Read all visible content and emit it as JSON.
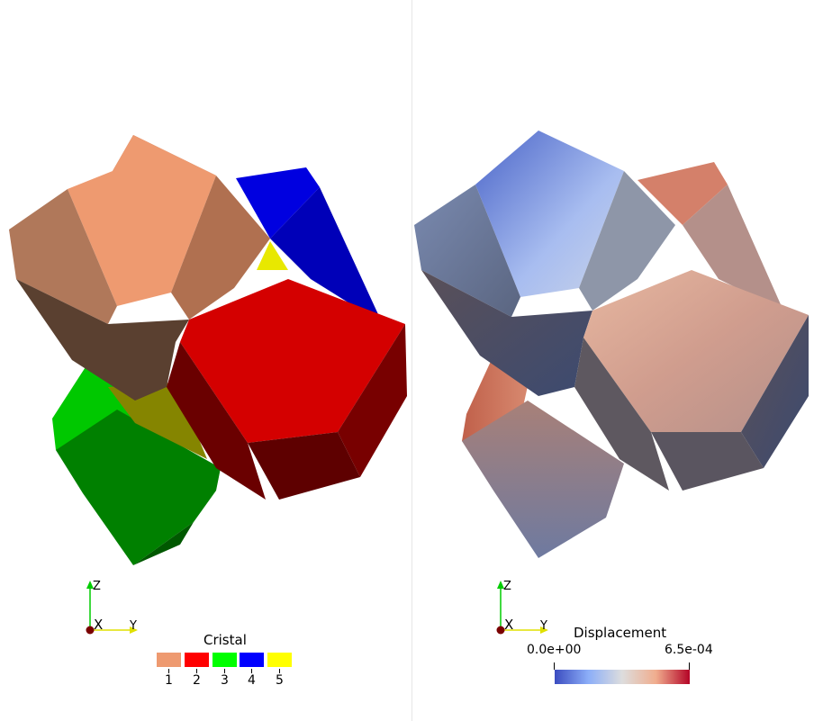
{
  "left_view": {
    "legend": {
      "title": "Cristal",
      "entries": [
        {
          "label": "1",
          "color": "#ee9a70"
        },
        {
          "label": "2",
          "color": "#ff0000"
        },
        {
          "label": "3",
          "color": "#00ff00"
        },
        {
          "label": "4",
          "color": "#0000ff"
        },
        {
          "label": "5",
          "color": "#ffff00"
        }
      ]
    },
    "axes": {
      "z": "Z",
      "x": "X",
      "y": "Y"
    }
  },
  "right_view": {
    "colorbar": {
      "title": "Displacement",
      "min_label": "0.0e+00",
      "max_label": "6.5e-04",
      "colormap": [
        "#3b4cc0",
        "#8caef8",
        "#dddddd",
        "#f0ad8e",
        "#b40426"
      ]
    },
    "axes": {
      "z": "Z",
      "x": "X",
      "y": "Y"
    }
  }
}
